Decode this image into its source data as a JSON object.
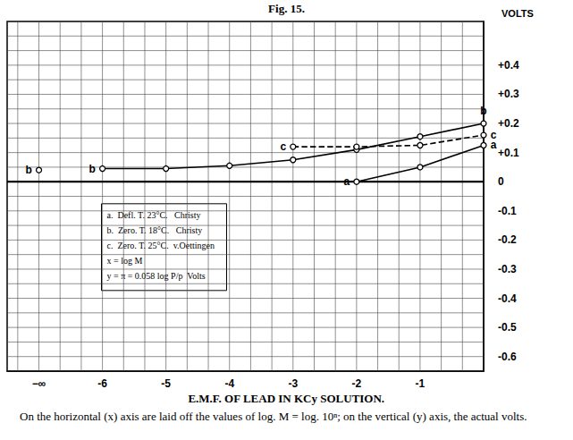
{
  "chart_data": {
    "type": "line",
    "title": "Fig. 15.",
    "subtitle": "E.M.F. OF LEAD IN KCy SOLUTION.",
    "caption": "On the horizontal (x) axis are laid off the values of log. M = log. 10ⁿ; on the vertical (y) axis, the actual volts.",
    "y_label": "VOLTS",
    "notes": [
      "x = log M",
      "y = π = 0.058 log P/p  Volts"
    ],
    "xlim": [
      -7.5,
      0
    ],
    "xticks": [
      {
        "value": -7,
        "label": "−∞"
      },
      -6,
      -5,
      -4,
      -3,
      -2,
      -1
    ],
    "ylim": [
      -0.65,
      0.55
    ],
    "yticks": [
      -0.6,
      -0.5,
      -0.4,
      -0.3,
      -0.2,
      -0.1,
      0,
      {
        "value": 0.1,
        "label": "+0.1"
      },
      {
        "value": 0.2,
        "label": "+0.2"
      },
      {
        "value": 0.3,
        "label": "+0.3"
      },
      {
        "value": 0.4,
        "label": "+0.4"
      }
    ],
    "grid": true,
    "legend": "lower left",
    "marker": "circle",
    "series": [
      {
        "name": "a.  Defl. T. 23°C.   Christy",
        "color": "#000000",
        "line_style": "solid",
        "x": [
          -2,
          -1,
          0
        ],
        "values": [
          0.0,
          0.05,
          0.125
        ],
        "point_labels": [
          "a",
          null,
          "a"
        ]
      },
      {
        "name": "b.  Zero. T. 18°C.   Christy",
        "color": "#000000",
        "line_style": "solid",
        "x": [
          -7,
          -6.5,
          -6,
          -5,
          -4,
          -3,
          -2,
          -1,
          0
        ],
        "values": [
          0.04,
          null,
          0.045,
          0.045,
          0.055,
          0.075,
          0.11,
          0.155,
          0.2
        ],
        "point_labels": [
          "b",
          null,
          "b",
          null,
          null,
          null,
          null,
          null,
          "b"
        ]
      },
      {
        "name": "c.  Zero. T. 25°C.  v.Oettingen",
        "color": "#000000",
        "line_style": "dashed",
        "x": [
          -3,
          -2,
          -1,
          0
        ],
        "values": [
          0.12,
          0.12,
          0.125,
          0.16
        ],
        "point_labels": [
          "c",
          null,
          null,
          "c"
        ]
      }
    ]
  }
}
